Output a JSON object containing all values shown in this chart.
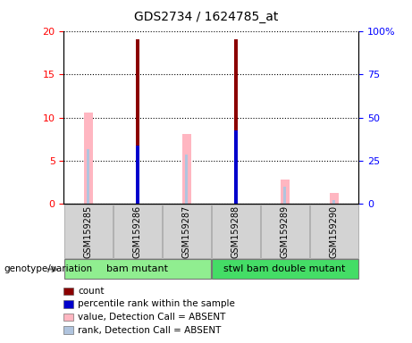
{
  "title": "GDS2734 / 1624785_at",
  "samples": [
    "GSM159285",
    "GSM159286",
    "GSM159287",
    "GSM159288",
    "GSM159289",
    "GSM159290"
  ],
  "groups": [
    {
      "label": "bam mutant",
      "color": "#90EE90",
      "size": 3
    },
    {
      "label": "stwl bam double mutant",
      "color": "#44DD66",
      "size": 3
    }
  ],
  "count_values": [
    0,
    19,
    0,
    19,
    0,
    0
  ],
  "percentile_rank_values": [
    0,
    6.8,
    0,
    8.5,
    0,
    0
  ],
  "value_absent": [
    10.6,
    0,
    8.1,
    0,
    2.8,
    1.3
  ],
  "rank_absent": [
    6.3,
    0,
    5.7,
    0,
    2.0,
    0.5
  ],
  "ylim_left": [
    0,
    20
  ],
  "ylim_right": [
    0,
    100
  ],
  "yticks_left": [
    0,
    5,
    10,
    15,
    20
  ],
  "yticks_right": [
    0,
    25,
    50,
    75,
    100
  ],
  "yticklabels_right": [
    "0",
    "25",
    "50",
    "75",
    "100%"
  ],
  "color_count": "#8B0000",
  "color_percentile": "#0000CC",
  "color_value_absent": "#FFB6C1",
  "color_rank_absent": "#B0C4DE",
  "legend_items": [
    {
      "label": "count",
      "color": "#8B0000"
    },
    {
      "label": "percentile rank within the sample",
      "color": "#0000CC"
    },
    {
      "label": "value, Detection Call = ABSENT",
      "color": "#FFB6C1"
    },
    {
      "label": "rank, Detection Call = ABSENT",
      "color": "#B0C4DE"
    }
  ]
}
